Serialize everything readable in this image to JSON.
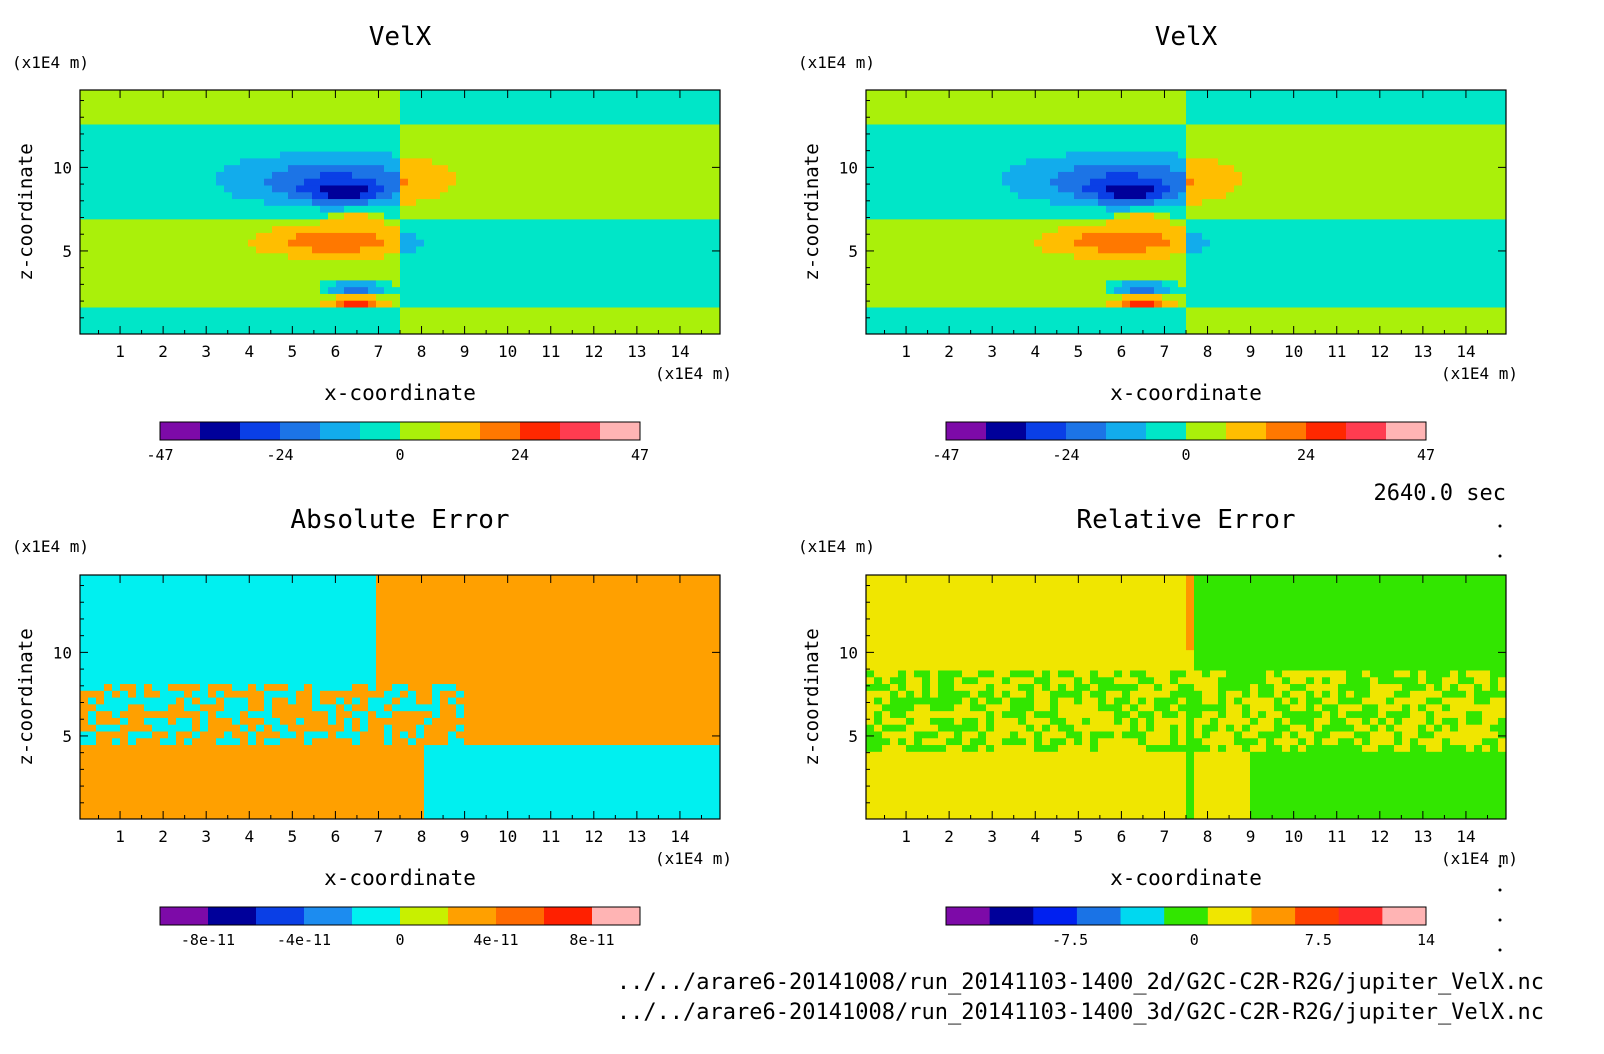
{
  "time_label": "2640.0 sec",
  "files": [
    "../../arare6-20141008/run_20141103-1400_2d/G2C-C2R-R2G/jupiter_VelX.nc",
    "../../arare6-20141008/run_20141103-1400_3d/G2C-C2R-R2G/jupiter_VelX.nc"
  ],
  "chart_data": [
    {
      "type": "heatmap",
      "title": "VelX",
      "xlabel": "x-coordinate",
      "ylabel": "z-coordinate",
      "x_unit": "(x1E4 m)",
      "y_unit": "(x1E4 m)",
      "xlim": [
        0.07,
        14.93
      ],
      "ylim": [
        0.03,
        14.63
      ],
      "xticks": [
        1,
        2,
        3,
        4,
        5,
        6,
        7,
        8,
        9,
        10,
        11,
        12,
        13,
        14
      ],
      "yticks": [
        5,
        10
      ],
      "field": "velx",
      "colorbar": {
        "colors": [
          "#7d0aa8",
          "#00009a",
          "#0a3fe6",
          "#1c74e6",
          "#12acec",
          "#00e6c8",
          "#aaf00a",
          "#ffbe00",
          "#ff7800",
          "#ff2800",
          "#ff3c50",
          "#ffb4b4"
        ],
        "ticklabels": [
          "-47",
          "-24",
          "0",
          "24",
          "47"
        ],
        "min": -47,
        "max": 47
      }
    },
    {
      "type": "heatmap",
      "title": "VelX",
      "xlabel": "x-coordinate",
      "ylabel": "z-coordinate",
      "x_unit": "(x1E4 m)",
      "y_unit": "(x1E4 m)",
      "xlim": [
        0.07,
        14.93
      ],
      "ylim": [
        0.03,
        14.63
      ],
      "xticks": [
        1,
        2,
        3,
        4,
        5,
        6,
        7,
        8,
        9,
        10,
        11,
        12,
        13,
        14
      ],
      "yticks": [
        5,
        10
      ],
      "field": "velx",
      "colorbar": {
        "colors": [
          "#7d0aa8",
          "#00009a",
          "#0a3fe6",
          "#1c74e6",
          "#12acec",
          "#00e6c8",
          "#aaf00a",
          "#ffbe00",
          "#ff7800",
          "#ff2800",
          "#ff3c50",
          "#ffb4b4"
        ],
        "ticklabels": [
          "-47",
          "-24",
          "0",
          "24",
          "47"
        ],
        "min": -47,
        "max": 47
      }
    },
    {
      "type": "heatmap",
      "title": "Absolute Error",
      "xlabel": "x-coordinate",
      "ylabel": "z-coordinate",
      "x_unit": "(x1E4 m)",
      "y_unit": "(x1E4 m)",
      "xlim": [
        0.07,
        14.93
      ],
      "ylim": [
        0.03,
        14.63
      ],
      "xticks": [
        1,
        2,
        3,
        4,
        5,
        6,
        7,
        8,
        9,
        10,
        11,
        12,
        13,
        14
      ],
      "yticks": [
        5,
        10
      ],
      "field": "abs",
      "colorbar": {
        "colors": [
          "#7d0aa8",
          "#00009a",
          "#0a3fe6",
          "#1c8cf0",
          "#00f0f0",
          "#c8f000",
          "#ffa000",
          "#ff6a00",
          "#ff2000",
          "#ffb4b4"
        ],
        "ticklabels": [
          "-8e-11",
          "-4e-11",
          "0",
          "4e-11",
          "8e-11"
        ],
        "min": -1e-10,
        "max": 1e-10
      }
    },
    {
      "type": "heatmap",
      "title": "Relative Error",
      "xlabel": "x-coordinate",
      "ylabel": "z-coordinate",
      "x_unit": "(x1E4 m)",
      "y_unit": "(x1E4 m)",
      "xlim": [
        0.07,
        14.93
      ],
      "ylim": [
        0.03,
        14.63
      ],
      "xticks": [
        1,
        2,
        3,
        4,
        5,
        6,
        7,
        8,
        9,
        10,
        11,
        12,
        13,
        14
      ],
      "yticks": [
        5,
        10
      ],
      "field": "rel",
      "colorbar": {
        "colors": [
          "#7d0aa8",
          "#00009a",
          "#0020f0",
          "#1a73e6",
          "#00d8f0",
          "#32e600",
          "#f0e600",
          "#ff9600",
          "#ff4000",
          "#ff2a2a",
          "#ffb4b4"
        ],
        "ticklabels": [
          "-7.5",
          "0",
          "7.5",
          "14"
        ],
        "min": -15,
        "max": 14
      }
    }
  ]
}
